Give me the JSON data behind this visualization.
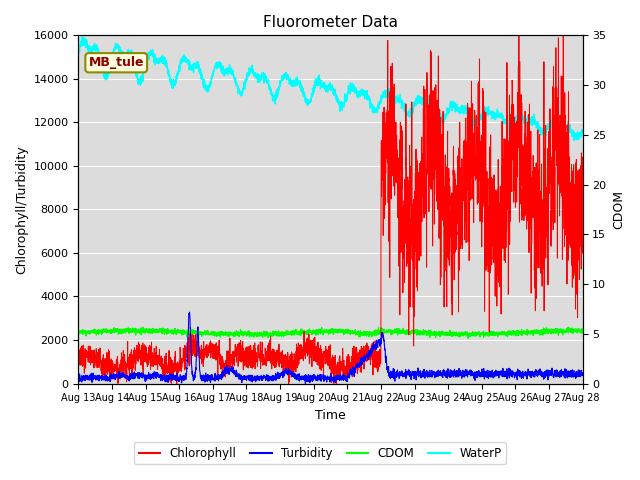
{
  "title": "Fluorometer Data",
  "xlabel": "Time",
  "ylabel_left": "Chlorophyll/Turbidity",
  "ylabel_right": "CDOM",
  "annotation": "MB_tule",
  "ylim_left": [
    0,
    16000
  ],
  "ylim_right": [
    0,
    35
  ],
  "legend_entries": [
    "Chlorophyll",
    "Turbidity",
    "CDOM",
    "WaterP"
  ],
  "legend_colors": [
    "red",
    "blue",
    "green",
    "cyan"
  ],
  "bg_color": "#dcdcdc",
  "x_tick_labels": [
    "Aug 13",
    "Aug 14",
    "Aug 15",
    "Aug 16",
    "Aug 17",
    "Aug 18",
    "Aug 19",
    "Aug 20",
    "Aug 21",
    "Aug 22",
    "Aug 23",
    "Aug 24",
    "Aug 25",
    "Aug 26",
    "Aug 27",
    "Aug 28"
  ],
  "yticks_left": [
    0,
    2000,
    4000,
    6000,
    8000,
    10000,
    12000,
    14000,
    16000
  ],
  "yticks_right": [
    0,
    5,
    10,
    15,
    20,
    25,
    30,
    35
  ]
}
